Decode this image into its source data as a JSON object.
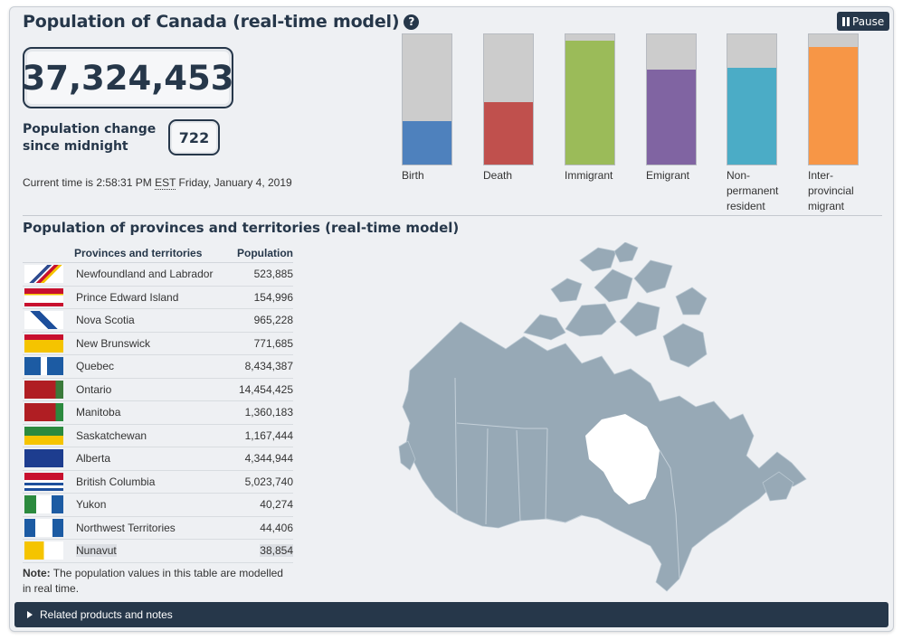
{
  "header": {
    "title": "Population of Canada (real-time model)",
    "help_icon": "question-circle-icon",
    "pause_label": "Pause"
  },
  "population": {
    "total": "37,324,453",
    "change_label_line1": "Population change",
    "change_label_line2": "since midnight",
    "change_value": "722",
    "time_prefix": "Current time is 2:58:31 PM ",
    "time_zone": "EST",
    "time_suffix": " Friday, January 4, 2019"
  },
  "components": [
    {
      "line1": "Birth",
      "line2": "",
      "line3": "",
      "fill": 0.33,
      "color": "#4e81bd"
    },
    {
      "line1": "Death",
      "line2": "",
      "line3": "",
      "fill": 0.48,
      "color": "#c0504d"
    },
    {
      "line1": "Immigrant",
      "line2": "",
      "line3": "",
      "fill": 0.95,
      "color": "#9bbb59"
    },
    {
      "line1": "Emigrant",
      "line2": "",
      "line3": "",
      "fill": 0.73,
      "color": "#8064a2"
    },
    {
      "line1": "Non-",
      "line2": "permanent",
      "line3": "resident",
      "fill": 0.74,
      "color": "#4bacc6"
    },
    {
      "line1": "Inter-",
      "line2": "provincial",
      "line3": "migrant",
      "fill": 0.9,
      "color": "#f79646"
    }
  ],
  "provinces": {
    "section_title": "Population of provinces and territories (real-time model)",
    "col_name": "Provinces and territories",
    "col_pop": "Population",
    "rows": [
      {
        "name": "Newfoundland and Labrador",
        "population": "523,885",
        "flag": "nl-flag-icon"
      },
      {
        "name": "Prince Edward Island",
        "population": "154,996",
        "flag": "pe-flag-icon"
      },
      {
        "name": "Nova Scotia",
        "population": "965,228",
        "flag": "ns-flag-icon"
      },
      {
        "name": "New Brunswick",
        "population": "771,685",
        "flag": "nb-flag-icon"
      },
      {
        "name": "Quebec",
        "population": "8,434,387",
        "flag": "qc-flag-icon"
      },
      {
        "name": "Ontario",
        "population": "14,454,425",
        "flag": "on-flag-icon"
      },
      {
        "name": "Manitoba",
        "population": "1,360,183",
        "flag": "mb-flag-icon"
      },
      {
        "name": "Saskatchewan",
        "population": "1,167,444",
        "flag": "sk-flag-icon"
      },
      {
        "name": "Alberta",
        "population": "4,344,944",
        "flag": "ab-flag-icon"
      },
      {
        "name": "British Columbia",
        "population": "5,023,740",
        "flag": "bc-flag-icon"
      },
      {
        "name": "Yukon",
        "population": "40,274",
        "flag": "yt-flag-icon"
      },
      {
        "name": "Northwest Territories",
        "population": "44,406",
        "flag": "nt-flag-icon"
      },
      {
        "name": "Nunavut",
        "population": "38,854",
        "flag": "nu-flag-icon"
      }
    ],
    "note_bold": "Note:",
    "note_text": " The population values in this table are modelled in real time."
  },
  "map": {
    "icon": "canada-map-icon",
    "color": "#97a9b6"
  },
  "footer": {
    "related_label": "Related products and notes"
  },
  "colors": {
    "brand": "#26374a",
    "background": "#eef0f3"
  }
}
